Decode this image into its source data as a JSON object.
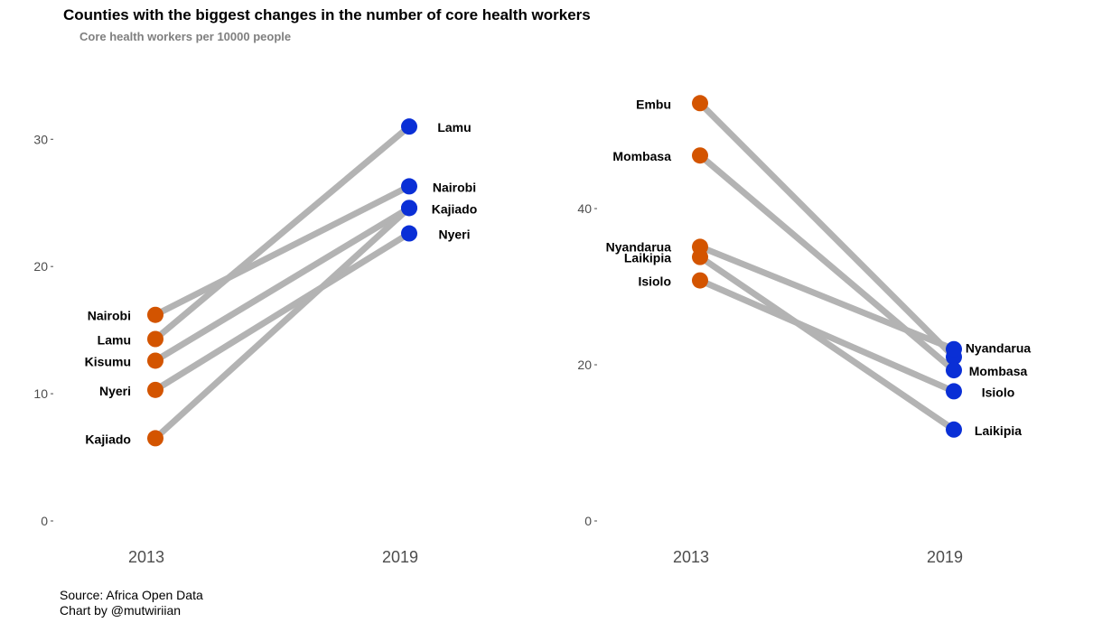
{
  "title": "Counties with the biggest changes in the number of core health workers",
  "subtitle": "Core health workers per 10000 people",
  "caption": {
    "source": "Source: Africa Open Data",
    "credit": "Chart by @mutwiriian"
  },
  "colors": {
    "start_point": "#d35400",
    "end_point": "#0a2fd6",
    "line": "#b3b3b3",
    "text": "#000000",
    "axis_text": "#4d4d4d"
  },
  "chart_data": [
    {
      "type": "line",
      "chart_style": "slope",
      "x": [
        "2013",
        "2019"
      ],
      "ylim": [
        0,
        33
      ],
      "yticks": [
        0,
        10,
        20,
        30
      ],
      "grid": false,
      "series": [
        {
          "name": "Nairobi",
          "values": [
            16.2,
            26.3
          ]
        },
        {
          "name": "Lamu",
          "values": [
            14.3,
            31.0
          ]
        },
        {
          "name": "Kisumu",
          "values": [
            12.6,
            24.6
          ]
        },
        {
          "name": "Nyeri",
          "values": [
            10.3,
            22.6
          ]
        },
        {
          "name": "Kajiado",
          "values": [
            6.5,
            24.6
          ]
        }
      ],
      "start_labels": [
        "Nairobi",
        "Lamu",
        "Kisumu",
        "Nyeri",
        "Kajiado"
      ],
      "end_labels": [
        "Lamu",
        "Nairobi",
        "Kajiado",
        "Nyeri"
      ]
    },
    {
      "type": "line",
      "chart_style": "slope",
      "x": [
        "2013",
        "2019"
      ],
      "ylim": [
        0,
        57
      ],
      "yticks": [
        0,
        20,
        40
      ],
      "grid": false,
      "series": [
        {
          "name": "Embu",
          "values": [
            53.5,
            21.0
          ]
        },
        {
          "name": "Mombasa",
          "values": [
            46.8,
            19.3
          ]
        },
        {
          "name": "Nyandarua",
          "values": [
            35.1,
            22.0
          ]
        },
        {
          "name": "Laikipia",
          "values": [
            33.8,
            11.7
          ]
        },
        {
          "name": "Isiolo",
          "values": [
            30.8,
            16.6
          ]
        }
      ],
      "start_labels": [
        "Embu",
        "Mombasa",
        "Nyandarua",
        "Laikipia",
        "Isiolo"
      ],
      "end_labels": [
        "Nyandarua",
        "Mombasa",
        "Isiolo",
        "Laikipia"
      ]
    }
  ]
}
